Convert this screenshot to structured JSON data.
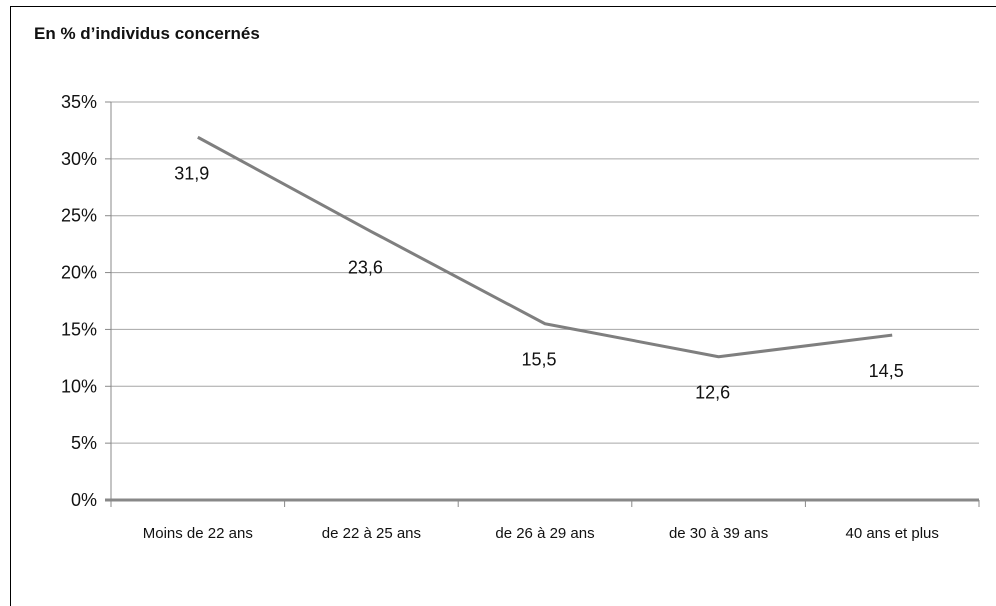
{
  "chart_data": {
    "type": "line",
    "title": "En % d’individus concernés",
    "categories": [
      "Moins de 22 ans",
      "de 22 à 25 ans",
      "de 26 à 29 ans",
      "de 30 à 39 ans",
      "40 ans et plus"
    ],
    "series": [
      {
        "values": [
          31.9,
          23.6,
          15.5,
          12.6,
          14.5
        ],
        "labels": [
          "31,9",
          "23,6",
          "15,5",
          "12,6",
          "14,5"
        ]
      }
    ],
    "y_ticks": [
      "0%",
      "5%",
      "10%",
      "15%",
      "20%",
      "25%",
      "30%",
      "35%"
    ],
    "ylim": [
      0,
      35
    ],
    "grid": true,
    "line_color": "#7f7f7f",
    "grid_color": "#a6a6a6",
    "axis_color": "#888888"
  }
}
